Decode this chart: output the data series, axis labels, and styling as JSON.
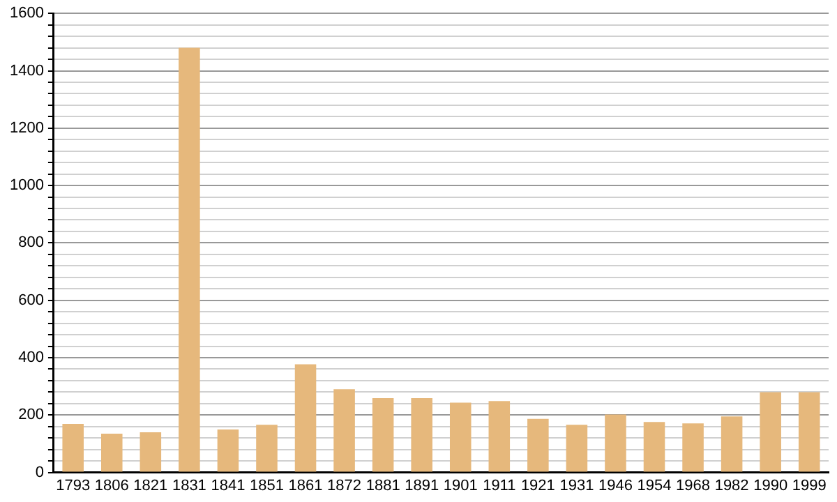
{
  "chart_data": {
    "type": "bar",
    "categories": [
      "1793",
      "1806",
      "1821",
      "1831",
      "1841",
      "1851",
      "1861",
      "1872",
      "1881",
      "1891",
      "1901",
      "1911",
      "1921",
      "1931",
      "1946",
      "1954",
      "1968",
      "1982",
      "1990",
      "1999"
    ],
    "values": [
      169,
      135,
      140,
      1480,
      150,
      166,
      377,
      290,
      259,
      259,
      243,
      249,
      187,
      166,
      202,
      176,
      171,
      195,
      280,
      280
    ],
    "color": "#e6b87c",
    "ylim": [
      0,
      1600
    ],
    "yticks": [
      0,
      {
        "value": 40,
        "label": null
      },
      {
        "value": 80,
        "label": null
      },
      {
        "value": 120,
        "label": null
      },
      {
        "value": 160,
        "label": null
      },
      200,
      {
        "value": 240,
        "label": null
      },
      {
        "value": 280,
        "label": null
      },
      {
        "value": 320,
        "label": null
      },
      {
        "value": 360,
        "label": null
      },
      400,
      {
        "value": 440,
        "label": null
      },
      {
        "value": 480,
        "label": null
      },
      {
        "value": 520,
        "label": null
      },
      {
        "value": 560,
        "label": null
      },
      600,
      {
        "value": 640,
        "label": null
      },
      {
        "value": 680,
        "label": null
      },
      {
        "value": 720,
        "label": null
      },
      {
        "value": 760,
        "label": null
      },
      800,
      {
        "value": 840,
        "label": null
      },
      {
        "value": 880,
        "label": null
      },
      {
        "value": 920,
        "label": null
      },
      {
        "value": 960,
        "label": null
      },
      1000,
      {
        "value": 1040,
        "label": null
      },
      {
        "value": 1080,
        "label": null
      },
      {
        "value": 1120,
        "label": null
      },
      {
        "value": 1160,
        "label": null
      },
      1200,
      {
        "value": 1240,
        "label": null
      },
      {
        "value": 1280,
        "label": null
      },
      {
        "value": 1320,
        "label": null
      },
      {
        "value": 1360,
        "label": null
      },
      1400,
      {
        "value": 1440,
        "label": null
      },
      {
        "value": 1480,
        "label": null
      },
      {
        "value": 1520,
        "label": null
      },
      {
        "value": 1560,
        "label": null
      },
      1600
    ],
    "grid": "y"
  }
}
